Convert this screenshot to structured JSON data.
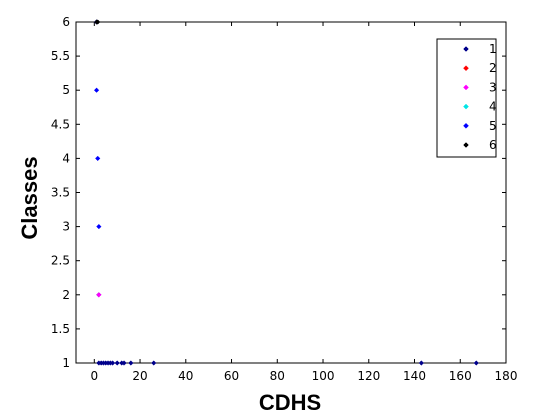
{
  "chart_data": {
    "type": "scatter",
    "title": "",
    "xlabel": "CDHS",
    "ylabel": "Classes",
    "xlim": [
      -8,
      180
    ],
    "ylim": [
      1,
      6
    ],
    "xticks": [
      "0",
      "20",
      "40",
      "60",
      "80",
      "100",
      "120",
      "140",
      "160",
      "180"
    ],
    "yticks": [
      "1",
      "1.5",
      "2",
      "2.5",
      "3",
      "3.5",
      "4",
      "4.5",
      "5",
      "5.5",
      "6"
    ],
    "xtick_values": [
      0,
      20,
      40,
      60,
      80,
      100,
      120,
      140,
      160,
      180
    ],
    "ytick_values": [
      1,
      1.5,
      2,
      2.5,
      3,
      3.5,
      4,
      4.5,
      5,
      5.5,
      6
    ],
    "legend_position": "top-right",
    "series": [
      {
        "name": "1",
        "color": "#00008b",
        "points": [
          [
            2,
            1
          ],
          [
            3,
            1
          ],
          [
            4,
            1
          ],
          [
            5,
            1
          ],
          [
            6,
            1
          ],
          [
            7,
            1
          ],
          [
            8,
            1
          ],
          [
            10,
            1
          ],
          [
            12,
            1
          ],
          [
            13,
            1
          ],
          [
            16,
            1
          ],
          [
            26,
            1
          ],
          [
            143,
            1
          ],
          [
            167,
            1
          ],
          [
            2,
            2
          ]
        ]
      },
      {
        "name": "2",
        "color": "#ff0000",
        "points": []
      },
      {
        "name": "3",
        "color": "#ff00ff",
        "points": [
          [
            2,
            2
          ]
        ]
      },
      {
        "name": "4",
        "color": "#00e5e5",
        "points": []
      },
      {
        "name": "5",
        "color": "#0000ff",
        "points": [
          [
            1,
            5
          ],
          [
            1.5,
            4
          ],
          [
            2,
            3
          ],
          [
            1,
            6
          ]
        ]
      },
      {
        "name": "6",
        "color": "#000000",
        "points": [
          [
            1,
            6
          ],
          [
            1.5,
            6
          ]
        ]
      }
    ]
  }
}
